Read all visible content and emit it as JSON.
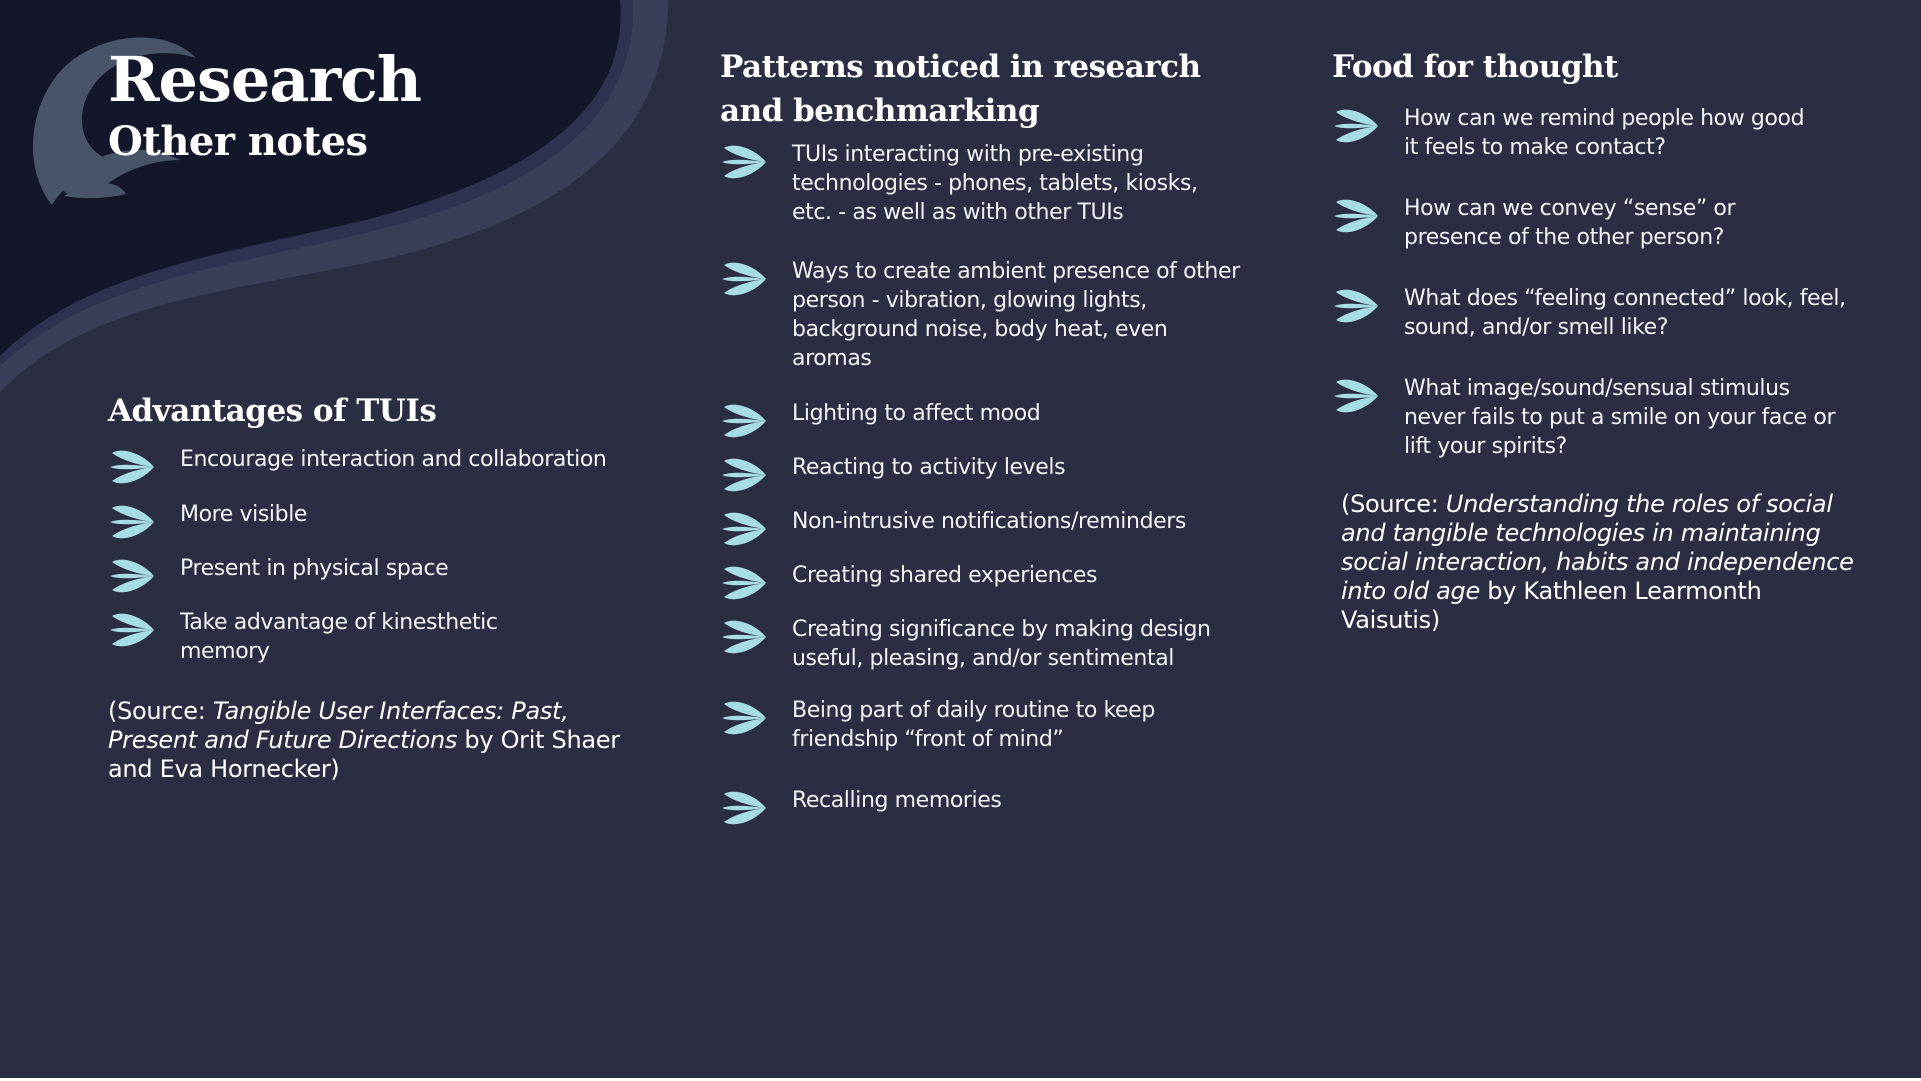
{
  "colors": {
    "background": "#2b2d42",
    "wave_dark": "#141629",
    "wave_band": "#3a3e58",
    "logo": "#4a5468",
    "bullet": "#a6dce3",
    "text": "#ffffff"
  },
  "title": {
    "main": "Research",
    "sub": "Other notes"
  },
  "logo_icon": "leaf-swirl-icon",
  "bullet_icon": "leaf-fan-bullet-icon",
  "advantages": {
    "heading": "Advantages of TUIs",
    "items": [
      "Encourage interaction and collaboration",
      "More visible",
      "Present in physical space",
      "Take advantage of kinesthetic memory"
    ],
    "source": {
      "prefix": "(Source: ",
      "title": "Tangible User Interfaces: Past, Present and Future Directions",
      "suffix": " by Orit Shaer and Eva Hornecker)"
    }
  },
  "patterns": {
    "heading": "Patterns noticed in research and benchmarking",
    "items": [
      "TUIs interacting with pre-existing technologies - phones, tablets, kiosks, etc. - as well as with other TUIs",
      "Ways to create ambient presence of other person - vibration, glowing lights, background noise, body heat, even aromas",
      "Lighting to affect mood",
      "Reacting to activity levels",
      "Non-intrusive notifications/reminders",
      "Creating shared experiences",
      "Creating significance by making design useful, pleasing, and/or sentimental",
      "Being part of daily routine to keep friendship “front of mind”",
      "Recalling memories"
    ]
  },
  "food": {
    "heading": "Food for thought",
    "items": [
      "How can we remind people how good it feels to make contact?",
      "How can we convey “sense” or presence of the other person?",
      "What does “feeling connected” look, feel, sound, and/or smell like?",
      "What image/sound/sensual stimulus never fails to put a smile on your face or lift your spirits?"
    ],
    "source": {
      "prefix": "(Source: ",
      "title": "Understanding the roles of social and tangible technologies in maintaining social interaction, habits and independence into old age",
      "suffix": " by Kathleen Learmonth Vaisutis)"
    }
  }
}
